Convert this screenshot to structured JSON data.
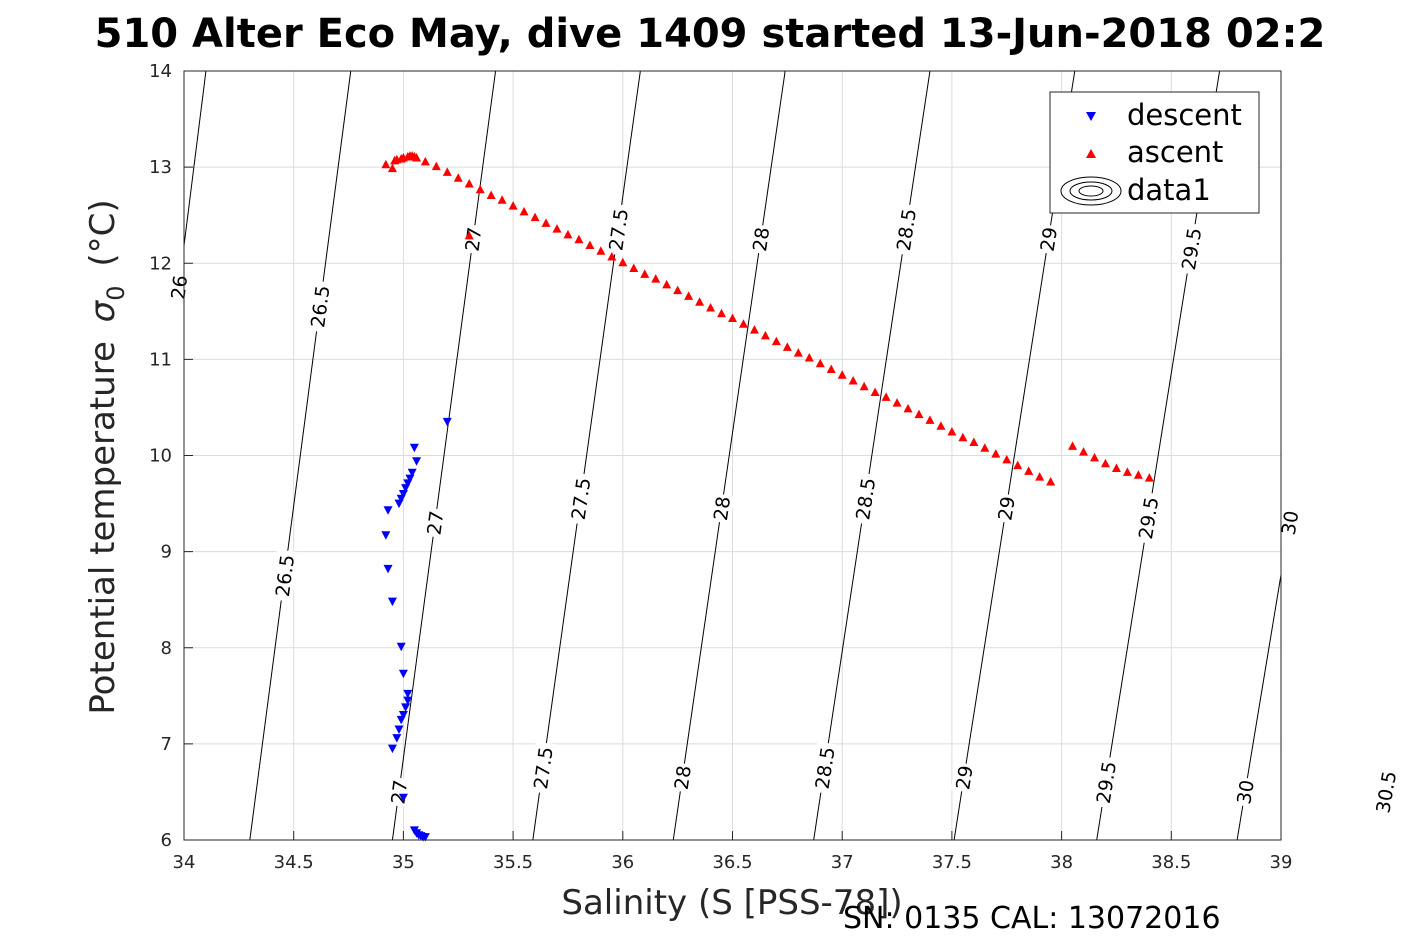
{
  "chart_data": {
    "type": "scatter",
    "title": "510 Alter Eco May, dive 1409 started 13-Jun-2018 02:2",
    "xlabel": "Salinity (S [PSS-78])",
    "ylabel": "Potential temperature",
    "ylabel_symbol": "σ",
    "ylabel_subscript": "0",
    "ylabel_unit": "(°C)",
    "footer": "SN: 0135  CAL: 13072016",
    "xlim": [
      34,
      39
    ],
    "ylim": [
      6,
      14
    ],
    "xticks": [
      "34",
      "34.5",
      "35",
      "35.5",
      "36",
      "36.5",
      "37",
      "37.5",
      "38",
      "38.5",
      "39"
    ],
    "yticks": [
      "6",
      "7",
      "8",
      "9",
      "10",
      "11",
      "12",
      "13",
      "14"
    ],
    "grid": true,
    "legend_position": "top-right",
    "legend": [
      "descent",
      "ascent",
      "data1"
    ],
    "colors": {
      "descent": "#0000ff",
      "ascent": "#ff0000",
      "contour": "#000000",
      "grid": "#dcdcdc"
    },
    "series": [
      {
        "name": "descent",
        "marker": "triangle-down",
        "x": [
          35.2,
          35.05,
          35.06,
          35.04,
          35.03,
          35.02,
          35.01,
          35.0,
          34.99,
          34.98,
          34.93,
          34.92,
          34.93,
          34.95,
          34.99,
          35.0,
          35.02,
          35.02,
          35.01,
          35.0,
          34.99,
          34.98,
          34.97,
          34.95,
          35.0,
          35.05,
          35.06,
          35.07,
          35.08,
          35.09,
          35.1
        ],
        "y": [
          10.35,
          10.08,
          9.94,
          9.82,
          9.76,
          9.71,
          9.66,
          9.6,
          9.55,
          9.5,
          9.43,
          9.17,
          8.82,
          8.48,
          8.01,
          7.73,
          7.52,
          7.45,
          7.38,
          7.3,
          7.25,
          7.15,
          7.06,
          6.95,
          6.44,
          6.1,
          6.07,
          6.05,
          6.04,
          6.03,
          6.03
        ]
      },
      {
        "name": "ascent",
        "marker": "triangle-up",
        "x": [
          34.92,
          34.95,
          34.96,
          34.97,
          34.99,
          35.0,
          35.02,
          35.03,
          35.04,
          35.05,
          35.06,
          35.3,
          35.1,
          35.15,
          35.2,
          35.25,
          35.3,
          35.35,
          35.4,
          35.45,
          35.5,
          35.55,
          35.6,
          35.65,
          35.7,
          35.75,
          35.8,
          35.85,
          35.9,
          35.95,
          36.0,
          36.05,
          36.1,
          36.15,
          36.2,
          36.25,
          36.3,
          36.35,
          36.4,
          36.45,
          36.5,
          36.55,
          36.6,
          36.65,
          36.7,
          36.75,
          36.8,
          36.85,
          36.9,
          36.95,
          37.0,
          37.05,
          37.1,
          37.15,
          37.2,
          37.25,
          37.3,
          37.35,
          37.4,
          37.45,
          37.5,
          37.55,
          37.6,
          37.65,
          37.7,
          37.75,
          37.8,
          37.85,
          37.9,
          37.95,
          38.05,
          38.1,
          38.15,
          38.2,
          38.25,
          38.3,
          38.35,
          38.4
        ],
        "y": [
          13.03,
          12.99,
          13.07,
          13.08,
          13.09,
          13.1,
          13.11,
          13.12,
          13.12,
          13.11,
          13.1,
          12.29,
          13.06,
          13.01,
          12.95,
          12.89,
          12.83,
          12.77,
          12.71,
          12.66,
          12.6,
          12.54,
          12.48,
          12.42,
          12.36,
          12.3,
          12.25,
          12.19,
          12.13,
          12.07,
          12.01,
          11.95,
          11.89,
          11.84,
          11.78,
          11.72,
          11.66,
          11.6,
          11.54,
          11.48,
          11.43,
          11.37,
          11.31,
          11.25,
          11.19,
          11.13,
          11.07,
          11.02,
          10.96,
          10.9,
          10.84,
          10.78,
          10.72,
          10.66,
          10.61,
          10.55,
          10.49,
          10.43,
          10.37,
          10.31,
          10.25,
          10.19,
          10.14,
          10.08,
          10.02,
          9.96,
          9.9,
          9.84,
          9.78,
          9.73,
          10.1,
          10.04,
          9.98,
          9.92,
          9.87,
          9.83,
          9.8,
          9.77
        ]
      }
    ],
    "contours": {
      "name": "data1",
      "levels": [
        "26",
        "26.5",
        "27",
        "27.5",
        "28",
        "28.5",
        "29",
        "29.5",
        "30",
        "30.5"
      ],
      "salinity_at_14C": [
        34.1,
        34.76,
        35.42,
        36.08,
        36.74,
        37.4,
        38.06,
        38.72,
        39.38,
        40.04
      ],
      "salinity_at_6C": [
        33.66,
        34.3,
        34.95,
        35.59,
        36.23,
        36.87,
        37.51,
        38.16,
        38.8,
        39.44
      ],
      "inline_labels": [
        {
          "text": "26",
          "s": 34.18,
          "t": 11.75
        },
        {
          "text": "26.5",
          "s": 34.82,
          "t": 11.55
        },
        {
          "text": "27",
          "s": 35.58,
          "t": 12.25
        },
        {
          "text": "27.5",
          "s": 36.25,
          "t": 12.35
        },
        {
          "text": "28",
          "s": 36.9,
          "t": 12.25
        },
        {
          "text": "28.5",
          "s": 37.5,
          "t": 12.35
        },
        {
          "text": "29",
          "s": 38.13,
          "t": 12.25
        },
        {
          "text": "29.5",
          "s": 38.7,
          "t": 12.15
        },
        {
          "text": "26.5",
          "s": 34.19,
          "t": 8.75
        },
        {
          "text": "27",
          "s": 34.93,
          "t": 9.3
        },
        {
          "text": "27.5",
          "s": 35.59,
          "t": 9.55
        },
        {
          "text": "28",
          "s": 36.23,
          "t": 9.45
        },
        {
          "text": "28.5",
          "s": 36.86,
          "t": 9.55
        },
        {
          "text": "29",
          "s": 37.51,
          "t": 9.45
        },
        {
          "text": "29.5",
          "s": 38.14,
          "t": 9.35
        },
        {
          "text": "30",
          "s": 38.78,
          "t": 9.3
        },
        {
          "text": "27",
          "s": 34.43,
          "t": 6.5
        },
        {
          "text": "27.5",
          "s": 35.06,
          "t": 6.75
        },
        {
          "text": "28",
          "s": 35.68,
          "t": 6.65
        },
        {
          "text": "28.5",
          "s": 36.33,
          "t": 6.75
        },
        {
          "text": "29",
          "s": 36.94,
          "t": 6.65
        },
        {
          "text": "29.5",
          "s": 37.58,
          "t": 6.6
        },
        {
          "text": "30",
          "s": 38.2,
          "t": 6.5
        },
        {
          "text": "30.5",
          "s": 38.82,
          "t": 6.5
        }
      ]
    }
  }
}
